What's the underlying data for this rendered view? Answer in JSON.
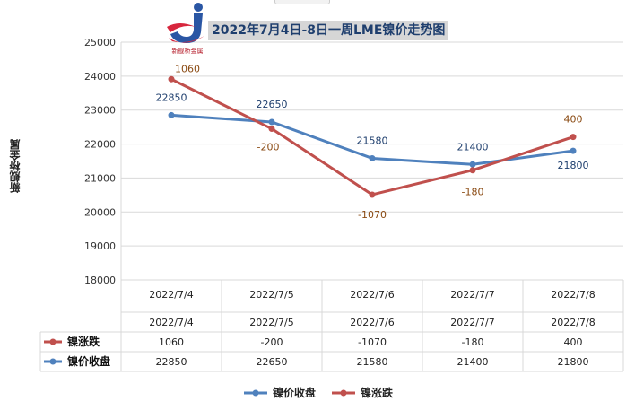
{
  "header": {
    "title": "2022年7月4日-8日一周LME镍价走势图",
    "logo_text": "新舰桥金属"
  },
  "chart_data": {
    "type": "line",
    "title": "2022年7月4日-8日一周LME镍价走势图",
    "ylabel": "新舰桥金属",
    "xlabel": "",
    "categories": [
      "2022/7/4",
      "2022/7/5",
      "2022/7/6",
      "2022/7/7",
      "2022/7/8"
    ],
    "ylim": [
      18000,
      25000
    ],
    "yticks": [
      "25000",
      "24000",
      "23000",
      "22000",
      "21000",
      "20000",
      "19000",
      "18000"
    ],
    "grid": true,
    "legend_position": "bottom",
    "series": [
      {
        "name": "镍价收盘",
        "color": "#4f81bd",
        "values": [
          22850,
          22650,
          21580,
          21400,
          21800
        ],
        "labels": [
          "22850",
          "22650",
          "21580",
          "21400",
          "21800"
        ]
      },
      {
        "name": "镍涨跌",
        "color": "#c0504d",
        "values": [
          23910,
          22450,
          20510,
          21230,
          22210
        ],
        "labels": [
          "1060",
          "-200",
          "-1070",
          "-180",
          "400"
        ]
      }
    ],
    "table": {
      "header": [
        "2022/7/4",
        "2022/7/5",
        "2022/7/6",
        "2022/7/7",
        "2022/7/8"
      ],
      "rows": [
        {
          "name": "镍涨跌",
          "color": "#c0504d",
          "cells": [
            "1060",
            "-200",
            "-1070",
            "-180",
            "400"
          ]
        },
        {
          "name": "镍价收盘",
          "color": "#4f81bd",
          "cells": [
            "22850",
            "22650",
            "21580",
            "21400",
            "21800"
          ]
        }
      ]
    },
    "legend": [
      {
        "name": "镍价收盘",
        "color": "#4f81bd"
      },
      {
        "name": "镍涨跌",
        "color": "#c0504d"
      }
    ]
  }
}
